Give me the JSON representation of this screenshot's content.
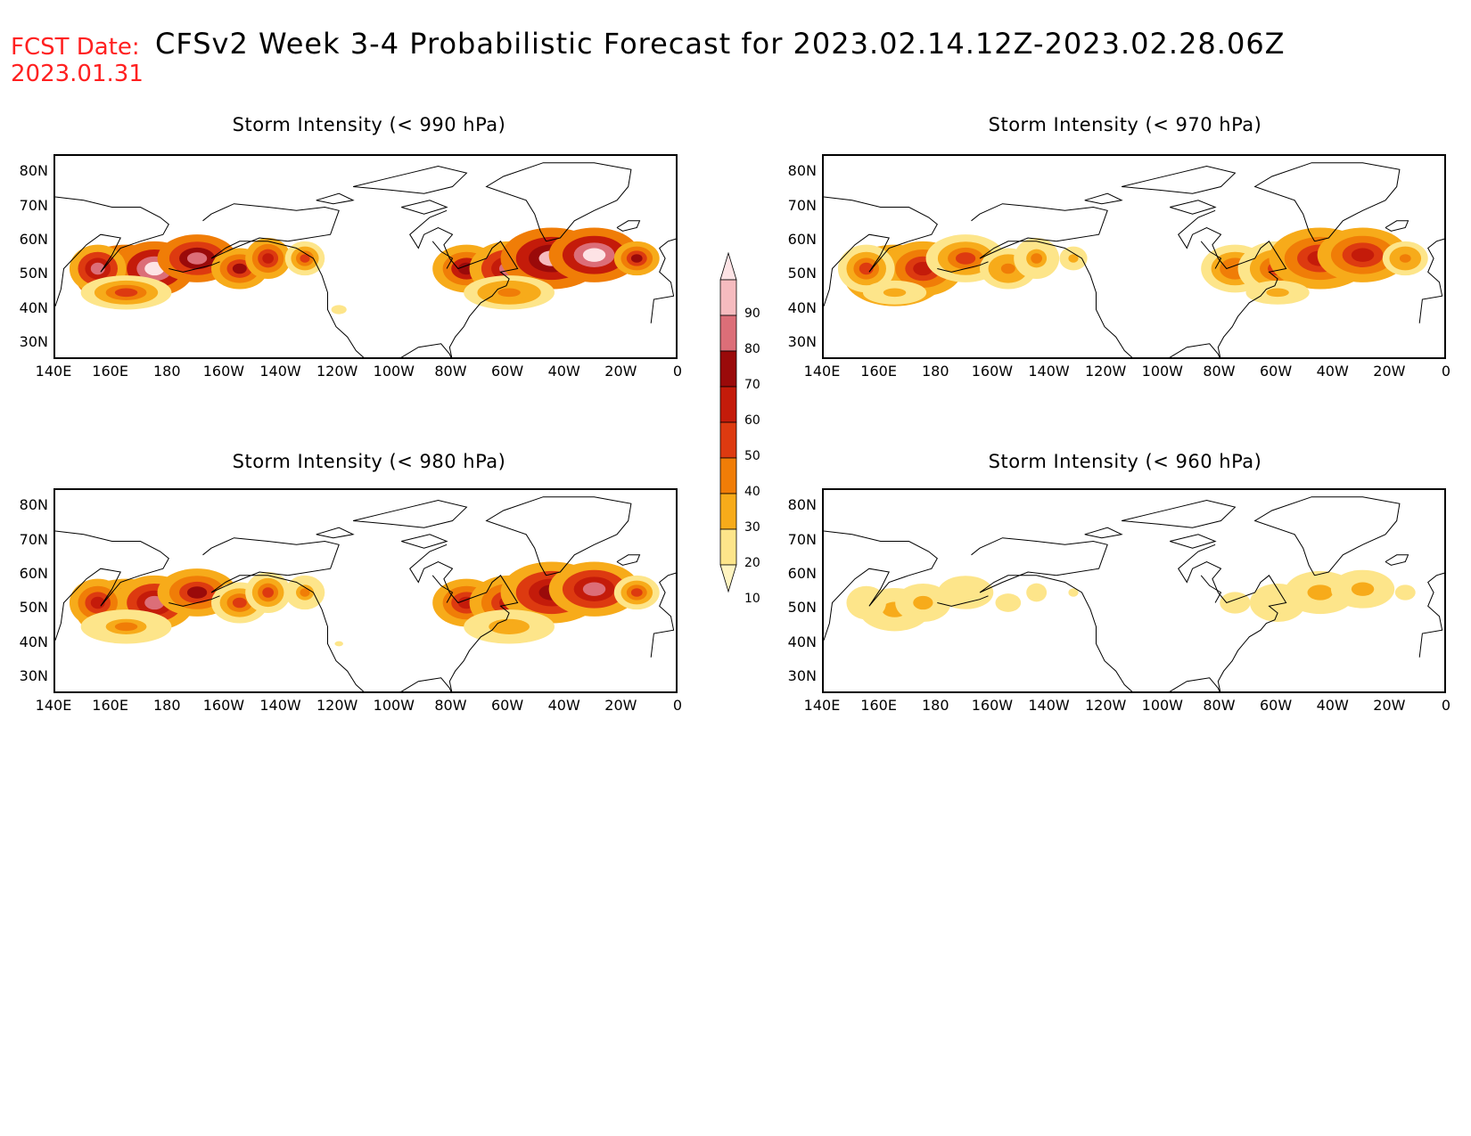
{
  "header": {
    "fcst_label": "FCST Date:",
    "fcst_date": "2023.01.31",
    "title": "CFSv2 Week 3-4 Probabilistic Forecast for 2023.02.14.12Z-2023.02.28.06Z",
    "label_color": "#ff2020",
    "title_color": "#000000"
  },
  "panels": [
    {
      "title": "Storm Intensity (< 990 hPa)",
      "intensity": 1.0
    },
    {
      "title": "Storm Intensity (< 970 hPa)",
      "intensity": 0.6
    },
    {
      "title": "Storm Intensity (< 980 hPa)",
      "intensity": 0.8
    },
    {
      "title": "Storm Intensity (< 960 hPa)",
      "intensity": 0.25
    }
  ],
  "axes": {
    "lat_ticks": [
      "80N",
      "70N",
      "60N",
      "50N",
      "40N",
      "30N"
    ],
    "lon_ticks": [
      "140E",
      "160E",
      "180",
      "160W",
      "140W",
      "120W",
      "100W",
      "80W",
      "60W",
      "40W",
      "20W",
      "0"
    ],
    "lat_range": [
      25,
      85
    ],
    "lon_range": [
      140,
      360
    ]
  },
  "colorbar": {
    "levels": [
      10,
      20,
      30,
      40,
      50,
      60,
      70,
      80,
      90
    ],
    "colors": [
      "#fff4c0",
      "#fde58a",
      "#f7ab1a",
      "#f07d07",
      "#dd3a10",
      "#c41b0a",
      "#9a0a0a",
      "#dc6e78",
      "#f6bbbf",
      "#fde3e5"
    ]
  },
  "map": {
    "line_color": "#000000",
    "land_fill": "#ffffff"
  }
}
